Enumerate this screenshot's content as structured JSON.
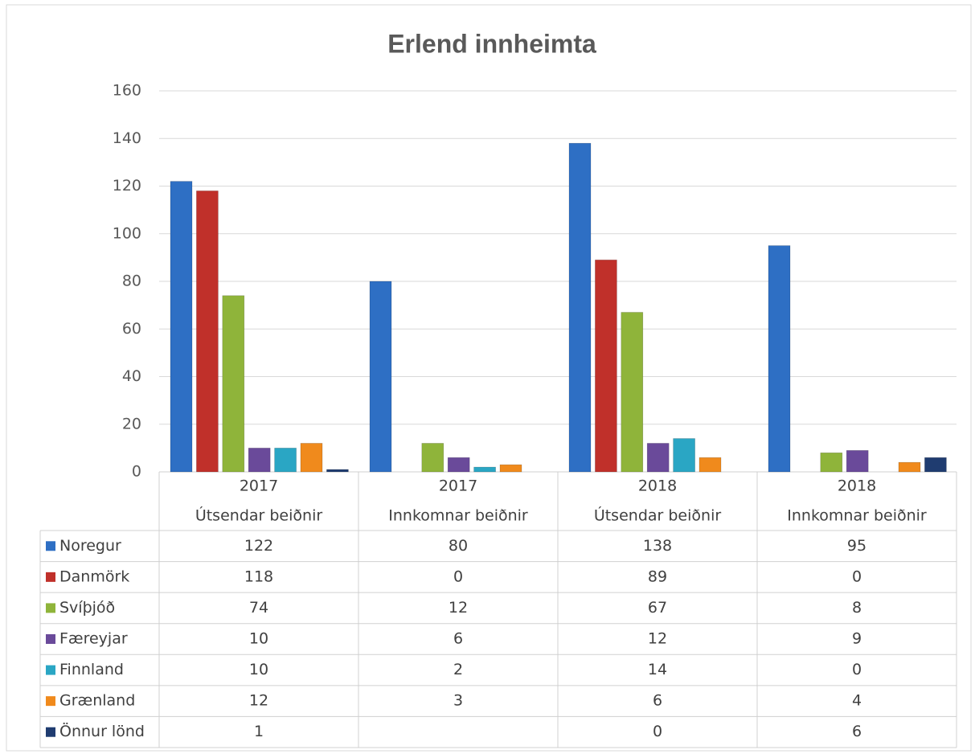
{
  "chart_data": {
    "type": "bar",
    "title": "Erlend innheimta",
    "categories": [
      [
        "2017",
        "Útsendar beiðnir"
      ],
      [
        "2017",
        "Innkomnar beiðnir"
      ],
      [
        "2018",
        "Útsendar beiðnir"
      ],
      [
        "2018",
        "Innkomnar beiðnir"
      ]
    ],
    "series": [
      {
        "name": "Noregur",
        "color": "#2e6fc4",
        "values": [
          122,
          80,
          138,
          95
        ]
      },
      {
        "name": "Danmörk",
        "color": "#c0302a",
        "values": [
          118,
          0,
          89,
          0
        ]
      },
      {
        "name": "Svíþjóð",
        "color": "#8fb43a",
        "values": [
          74,
          12,
          67,
          8
        ]
      },
      {
        "name": "Færeyjar",
        "color": "#6a4a9a",
        "values": [
          10,
          6,
          12,
          9
        ]
      },
      {
        "name": "Finnland",
        "color": "#2aa6c4",
        "values": [
          10,
          2,
          14,
          0
        ]
      },
      {
        "name": "Grænland",
        "color": "#f08a1c",
        "values": [
          12,
          3,
          6,
          4
        ]
      },
      {
        "name": "Önnur lönd",
        "color": "#1f3c70",
        "values": [
          1,
          null,
          0,
          6
        ]
      }
    ],
    "ylim": [
      0,
      160
    ],
    "yticks": [
      0,
      20,
      40,
      60,
      80,
      100,
      120,
      140,
      160
    ],
    "grid": true
  }
}
